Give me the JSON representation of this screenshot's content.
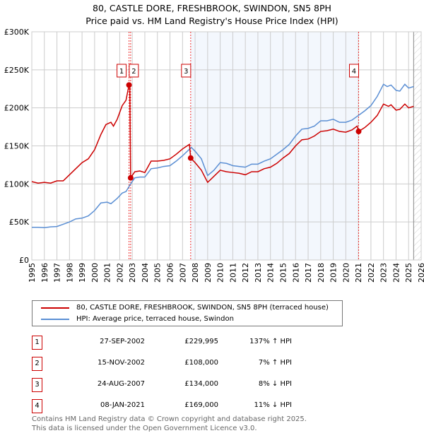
{
  "chart_data": {
    "type": "line",
    "title": "80, CASTLE DORE, FRESHBROOK, SWINDON, SN5 8PH",
    "subtitle": "Price paid vs. HM Land Registry's House Price Index (HPI)",
    "xlim": [
      1995,
      2026
    ],
    "ylim": [
      0,
      300000
    ],
    "x_ticks": [
      "1995",
      "1996",
      "1997",
      "1998",
      "1999",
      "2000",
      "2001",
      "2002",
      "2003",
      "2004",
      "2005",
      "2006",
      "2007",
      "2008",
      "2009",
      "2010",
      "2011",
      "2012",
      "2013",
      "2014",
      "2015",
      "2016",
      "2017",
      "2018",
      "2019",
      "2020",
      "2021",
      "2022",
      "2023",
      "2024",
      "2025",
      "2026"
    ],
    "y_ticks": [
      {
        "v": 0,
        "label": "£0"
      },
      {
        "v": 50000,
        "label": "£50K"
      },
      {
        "v": 100000,
        "label": "£100K"
      },
      {
        "v": 150000,
        "label": "£150K"
      },
      {
        "v": 200000,
        "label": "£200K"
      },
      {
        "v": 250000,
        "label": "£250K"
      },
      {
        "v": 300000,
        "label": "£300K"
      }
    ],
    "grid": true,
    "shaded_range": [
      2007.65,
      2021.02
    ],
    "hatched_from": 2025.4,
    "series": [
      {
        "name": "80, CASTLE DORE, FRESHBROOK, SWINDON, SN5 8PH (terraced house)",
        "color": "#cc0000",
        "points": [
          [
            1995,
            103000
          ],
          [
            1995.5,
            101000
          ],
          [
            1996,
            102000
          ],
          [
            1996.5,
            101000
          ],
          [
            1997,
            104000
          ],
          [
            1997.5,
            104000
          ],
          [
            1998,
            112000
          ],
          [
            1998.5,
            120000
          ],
          [
            1999,
            128000
          ],
          [
            1999.5,
            133000
          ],
          [
            2000,
            145000
          ],
          [
            2000.5,
            165000
          ],
          [
            2000.9,
            178000
          ],
          [
            2001.3,
            181000
          ],
          [
            2001.5,
            176000
          ],
          [
            2001.8,
            185000
          ],
          [
            2002.2,
            203000
          ],
          [
            2002.5,
            210000
          ],
          [
            2002.74,
            229995
          ],
          [
            2002.8,
            230000
          ],
          [
            2002.87,
            108000
          ],
          [
            2003.2,
            116000
          ],
          [
            2003.6,
            117000
          ],
          [
            2004,
            115000
          ],
          [
            2004.5,
            130000
          ],
          [
            2005,
            130000
          ],
          [
            2005.5,
            131000
          ],
          [
            2006,
            133000
          ],
          [
            2006.5,
            139000
          ],
          [
            2007,
            146000
          ],
          [
            2007.55,
            152000
          ],
          [
            2007.65,
            134000
          ],
          [
            2008,
            128000
          ],
          [
            2008.5,
            118000
          ],
          [
            2009,
            102000
          ],
          [
            2009.5,
            110000
          ],
          [
            2010,
            118000
          ],
          [
            2010.5,
            116000
          ],
          [
            2011,
            115000
          ],
          [
            2011.5,
            114000
          ],
          [
            2012,
            112000
          ],
          [
            2012.5,
            116000
          ],
          [
            2013,
            116000
          ],
          [
            2013.5,
            120000
          ],
          [
            2014,
            122000
          ],
          [
            2014.5,
            127000
          ],
          [
            2015,
            134000
          ],
          [
            2015.5,
            140000
          ],
          [
            2016,
            150000
          ],
          [
            2016.5,
            158000
          ],
          [
            2017,
            159000
          ],
          [
            2017.5,
            163000
          ],
          [
            2018,
            169000
          ],
          [
            2018.5,
            170000
          ],
          [
            2019,
            172000
          ],
          [
            2019.5,
            169000
          ],
          [
            2020,
            168000
          ],
          [
            2020.5,
            171000
          ],
          [
            2020.9,
            176000
          ],
          [
            2021.02,
            169000
          ],
          [
            2021.5,
            174000
          ],
          [
            2022,
            181000
          ],
          [
            2022.5,
            190000
          ],
          [
            2023,
            205000
          ],
          [
            2023.4,
            202000
          ],
          [
            2023.6,
            204000
          ],
          [
            2024,
            197000
          ],
          [
            2024.3,
            198000
          ],
          [
            2024.7,
            205000
          ],
          [
            2025,
            200000
          ],
          [
            2025.4,
            202000
          ]
        ]
      },
      {
        "name": "HPI: Average price, terraced house, Swindon",
        "color": "#5b8fd4",
        "points": [
          [
            1995,
            43000
          ],
          [
            1995.5,
            43000
          ],
          [
            1996,
            42500
          ],
          [
            1996.5,
            43500
          ],
          [
            1997,
            44000
          ],
          [
            1997.5,
            47000
          ],
          [
            1998,
            50000
          ],
          [
            1998.5,
            54000
          ],
          [
            1999,
            55000
          ],
          [
            1999.5,
            58000
          ],
          [
            2000,
            65000
          ],
          [
            2000.5,
            75000
          ],
          [
            2001,
            76000
          ],
          [
            2001.3,
            74000
          ],
          [
            2001.8,
            81000
          ],
          [
            2002.2,
            88000
          ],
          [
            2002.5,
            90000
          ],
          [
            2002.87,
            100000
          ],
          [
            2003.2,
            108000
          ],
          [
            2003.6,
            109000
          ],
          [
            2004,
            109000
          ],
          [
            2004.5,
            120000
          ],
          [
            2005,
            121000
          ],
          [
            2005.5,
            123000
          ],
          [
            2006,
            124000
          ],
          [
            2006.5,
            130000
          ],
          [
            2007,
            137000
          ],
          [
            2007.7,
            148000
          ],
          [
            2008,
            143000
          ],
          [
            2008.5,
            133000
          ],
          [
            2009,
            111000
          ],
          [
            2009.5,
            118000
          ],
          [
            2010,
            128000
          ],
          [
            2010.5,
            127000
          ],
          [
            2011,
            124000
          ],
          [
            2011.5,
            123000
          ],
          [
            2012,
            122000
          ],
          [
            2012.5,
            126000
          ],
          [
            2013,
            126000
          ],
          [
            2013.5,
            130000
          ],
          [
            2014,
            133000
          ],
          [
            2014.5,
            139000
          ],
          [
            2015,
            145000
          ],
          [
            2015.5,
            152000
          ],
          [
            2016,
            163000
          ],
          [
            2016.5,
            172000
          ],
          [
            2017,
            173000
          ],
          [
            2017.5,
            176000
          ],
          [
            2018,
            183000
          ],
          [
            2018.5,
            183000
          ],
          [
            2019,
            185000
          ],
          [
            2019.5,
            181000
          ],
          [
            2020,
            181000
          ],
          [
            2020.5,
            184000
          ],
          [
            2021,
            190000
          ],
          [
            2021.5,
            196000
          ],
          [
            2022,
            203000
          ],
          [
            2022.5,
            215000
          ],
          [
            2023,
            231000
          ],
          [
            2023.3,
            228000
          ],
          [
            2023.6,
            230000
          ],
          [
            2024,
            223000
          ],
          [
            2024.3,
            222000
          ],
          [
            2024.7,
            231000
          ],
          [
            2025,
            226000
          ],
          [
            2025.4,
            228000
          ]
        ]
      }
    ],
    "markers": [
      {
        "label": "1",
        "x": 2002.74,
        "y": 229995
      },
      {
        "label": "2",
        "x": 2002.87,
        "y": 108000
      },
      {
        "label": "3",
        "x": 2007.65,
        "y": 134000
      },
      {
        "label": "4",
        "x": 2021.02,
        "y": 169000
      }
    ]
  },
  "legend": {
    "red": "80, CASTLE DORE, FRESHBROOK, SWINDON, SN5 8PH (terraced house)",
    "blue": "HPI: Average price, terraced house, Swindon"
  },
  "transactions": [
    {
      "num": "1",
      "date": "27-SEP-2002",
      "price": "£229,995",
      "hpi": "137% ↑ HPI"
    },
    {
      "num": "2",
      "date": "15-NOV-2002",
      "price": "£108,000",
      "hpi": "7% ↑ HPI"
    },
    {
      "num": "3",
      "date": "24-AUG-2007",
      "price": "£134,000",
      "hpi": "8% ↓ HPI"
    },
    {
      "num": "4",
      "date": "08-JAN-2021",
      "price": "£169,000",
      "hpi": "11% ↓ HPI"
    }
  ],
  "footer": {
    "line1": "Contains HM Land Registry data © Crown copyright and database right 2025.",
    "line2": "This data is licensed under the Open Government Licence v3.0."
  }
}
